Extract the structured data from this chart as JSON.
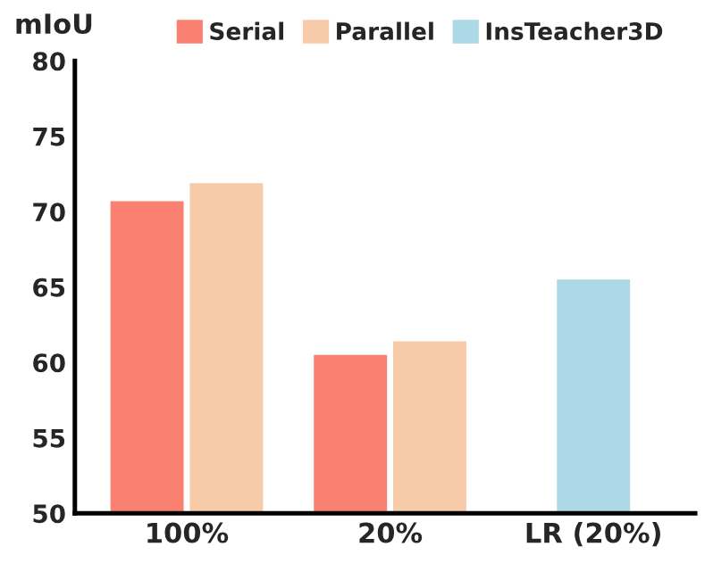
{
  "chart_data": {
    "type": "bar",
    "ylabel": "mIoU",
    "categories": [
      "100%",
      "20%",
      "LR (20%)"
    ],
    "series": [
      {
        "name": "Serial",
        "color": "#fa8072",
        "values": [
          70.7,
          60.5,
          null
        ]
      },
      {
        "name": "Parallel",
        "color": "#f7cbaa",
        "values": [
          71.9,
          61.4,
          null
        ]
      },
      {
        "name": "InsTeacher3D",
        "color": "#add8e6",
        "values": [
          null,
          null,
          65.5
        ]
      }
    ],
    "ylim": [
      50,
      80
    ],
    "yticks": [
      50,
      55,
      60,
      65,
      70,
      75,
      80
    ],
    "grid": false,
    "legend": "top"
  }
}
